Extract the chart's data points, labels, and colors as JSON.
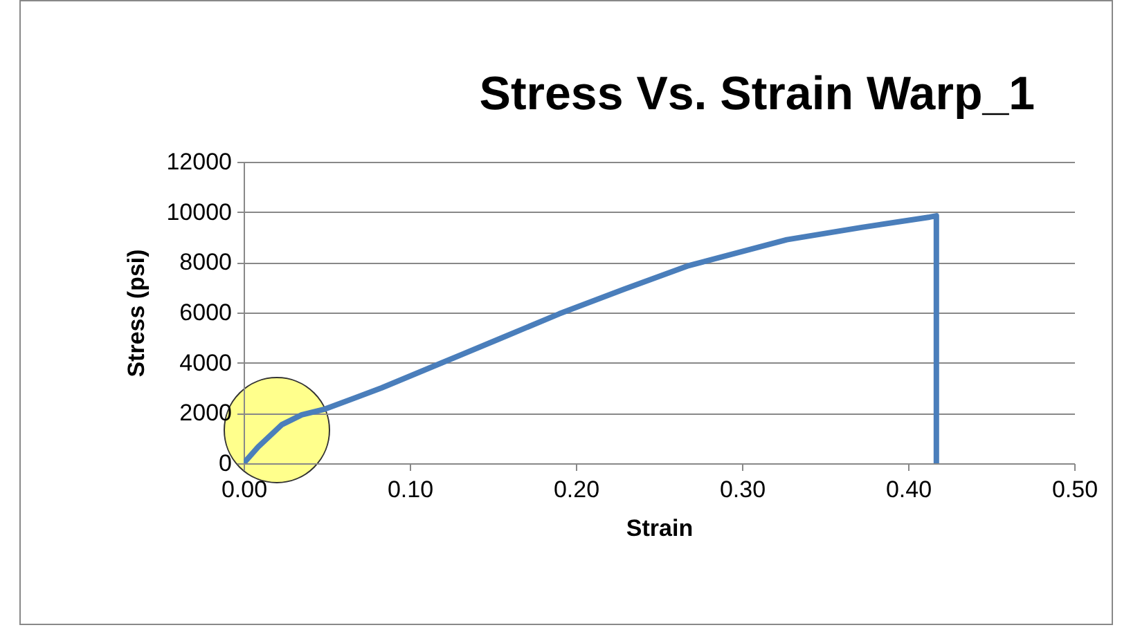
{
  "chart_data": {
    "type": "line",
    "title": "Stress Vs. Strain Warp_1",
    "xlabel": "Strain",
    "ylabel": "Stress (psi)",
    "x": [
      0,
      0.0087,
      0.023,
      0.035,
      0.049,
      0.083,
      0.119,
      0.155,
      0.19,
      0.229,
      0.268,
      0.327,
      0.372,
      0.413,
      0.417,
      0.417
    ],
    "series": [
      {
        "color": "#4a7ebb",
        "values": [
          0,
          650,
          1540,
          1930,
          2160,
          3000,
          3990,
          4980,
          5950,
          6930,
          7870,
          8900,
          9390,
          9800,
          9850,
          0
        ]
      }
    ],
    "xlim": [
      0,
      0.5
    ],
    "xticks": [
      {
        "value": 0,
        "label": "0.00"
      },
      {
        "value": 0.1,
        "label": "0.10"
      },
      {
        "value": 0.2,
        "label": "0.20"
      },
      {
        "value": 0.3,
        "label": "0.30"
      },
      {
        "value": 0.4,
        "label": "0.40"
      },
      {
        "value": 0.5,
        "label": "0.50"
      }
    ],
    "ylim": [
      0,
      12000
    ],
    "yticks": [
      0,
      2000,
      4000,
      6000,
      8000,
      10000,
      12000
    ],
    "grid": "y",
    "marker": "none",
    "line_style": "solid"
  }
}
